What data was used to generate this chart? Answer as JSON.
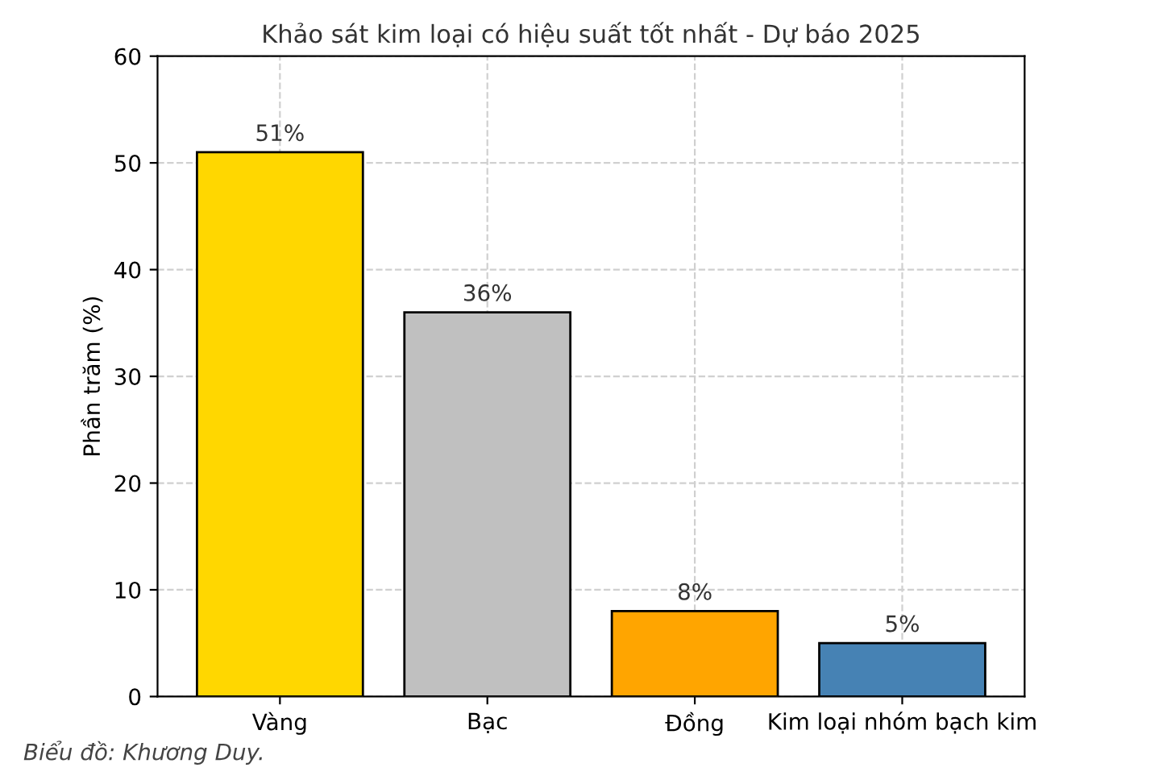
{
  "chart_data": {
    "type": "bar",
    "title": "Khảo sát kim loại có hiệu suất tốt nhất - Dự báo 2025",
    "ylabel": "Phần trăm (%)",
    "categories": [
      "Vàng",
      "Bạc",
      "Đồng",
      "Kim loại nhóm bạch kim"
    ],
    "values": [
      51,
      36,
      8,
      5
    ],
    "value_labels": [
      "51%",
      "36%",
      "8%",
      "5%"
    ],
    "colors": [
      "#ffd700",
      "#c0c0c0",
      "#ffa500",
      "#4682b4"
    ],
    "ylim": [
      0,
      60
    ],
    "yticks": [
      0,
      10,
      20,
      30,
      40,
      50,
      60
    ],
    "grid": true,
    "annotations": [
      "Biểu đồ: Khương Duy."
    ]
  }
}
